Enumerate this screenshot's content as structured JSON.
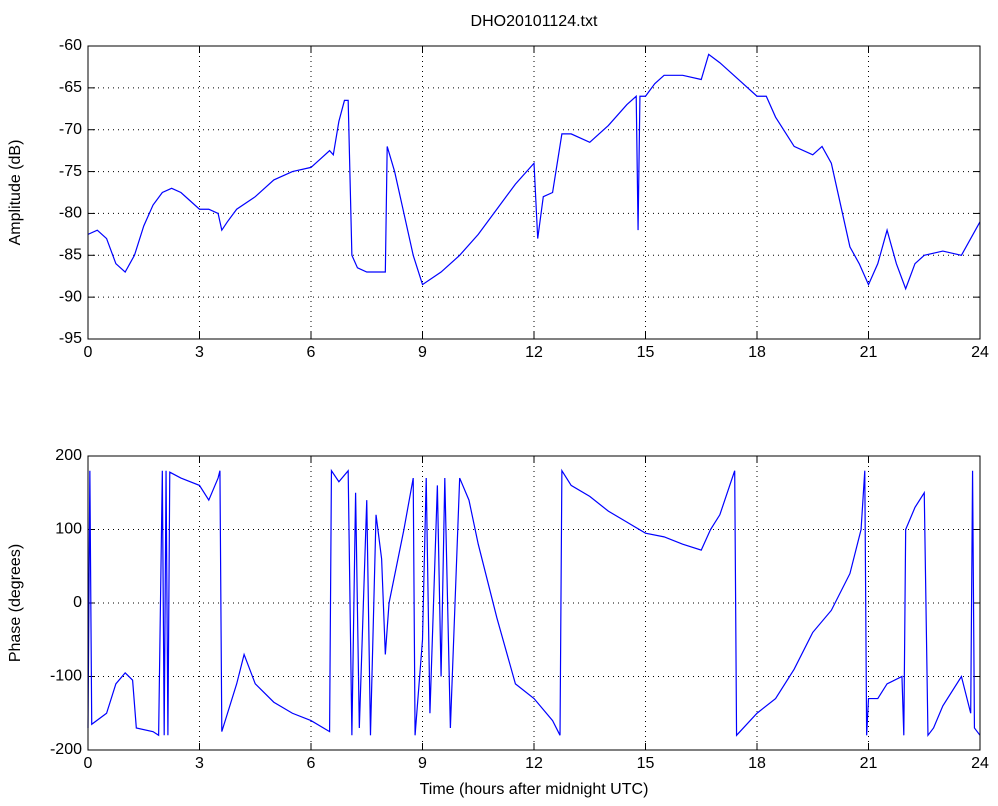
{
  "chart_data": [
    {
      "type": "line",
      "title": "DHO20101124.txt",
      "ylabel": "Amplitude (dB)",
      "x": [
        0,
        0.25,
        0.5,
        0.75,
        1.0,
        1.25,
        1.5,
        1.75,
        2.0,
        2.25,
        2.5,
        2.75,
        3.0,
        3.25,
        3.5,
        3.6,
        3.75,
        4.0,
        4.5,
        5.0,
        5.5,
        6.0,
        6.25,
        6.5,
        6.6,
        6.75,
        6.9,
        7.0,
        7.1,
        7.25,
        7.5,
        7.75,
        8.0,
        8.05,
        8.25,
        8.5,
        8.75,
        9.0,
        9.5,
        10.0,
        10.5,
        11.0,
        11.5,
        12.0,
        12.1,
        12.25,
        12.5,
        12.75,
        13.0,
        13.5,
        14.0,
        14.5,
        14.75,
        14.8,
        14.85,
        15.0,
        15.25,
        15.5,
        16.0,
        16.5,
        16.7,
        17.0,
        17.5,
        18.0,
        18.25,
        18.5,
        19.0,
        19.5,
        19.75,
        20.0,
        20.25,
        20.5,
        20.75,
        21.0,
        21.25,
        21.5,
        21.75,
        22.0,
        22.25,
        22.5,
        23.0,
        23.5,
        24.0
      ],
      "color": "#0000ff",
      "values": [
        -82.5,
        -82,
        -83,
        -86,
        -87,
        -85,
        -81.5,
        -79,
        -77.5,
        -77,
        -77.5,
        -78.5,
        -79.5,
        -79.5,
        -80,
        -82,
        -81,
        -79.5,
        -78,
        -76,
        -75,
        -74.5,
        -73.5,
        -72.5,
        -73,
        -69,
        -66.5,
        -66.5,
        -85,
        -86.5,
        -87,
        -87,
        -87,
        -72,
        -75,
        -80,
        -85,
        -88.5,
        -87,
        -85,
        -82.5,
        -79.5,
        -76.5,
        -74,
        -83,
        -78,
        -77.5,
        -70.5,
        -70.5,
        -71.5,
        -69.5,
        -67,
        -66,
        -82,
        -66,
        -66,
        -64.5,
        -63.5,
        -63.5,
        -64,
        -61,
        -62,
        -64,
        -66,
        -66,
        -68.5,
        -72,
        -73,
        -72,
        -74,
        -79,
        -84,
        -86,
        -88.5,
        -86,
        -82,
        -86,
        -89,
        -86,
        -85,
        -84.5,
        -85,
        -81
      ],
      "xlim": [
        0,
        24
      ],
      "xticks": [
        0,
        3,
        6,
        9,
        12,
        15,
        18,
        21,
        24
      ],
      "ylim": [
        -95,
        -60
      ],
      "yticks": [
        -95,
        -90,
        -85,
        -80,
        -75,
        -70,
        -65,
        -60
      ],
      "grid": true
    },
    {
      "type": "line",
      "xlabel": "Time (hours after midnight UTC)",
      "ylabel": "Phase (degrees)",
      "x": [
        0,
        0.05,
        0.1,
        0.5,
        0.75,
        1.0,
        1.2,
        1.3,
        1.75,
        1.9,
        2.0,
        2.05,
        2.1,
        2.15,
        2.2,
        2.5,
        3.0,
        3.25,
        3.5,
        3.55,
        3.6,
        4.0,
        4.2,
        4.5,
        5.0,
        5.5,
        6.0,
        6.5,
        6.55,
        6.75,
        7.0,
        7.1,
        7.2,
        7.3,
        7.5,
        7.6,
        7.75,
        7.9,
        8.0,
        8.1,
        8.5,
        8.75,
        8.8,
        9.0,
        9.1,
        9.2,
        9.4,
        9.5,
        9.6,
        9.75,
        10.0,
        10.25,
        10.5,
        11.0,
        11.5,
        12.0,
        12.5,
        12.7,
        12.75,
        13.0,
        13.5,
        14.0,
        14.5,
        15.0,
        15.5,
        16.0,
        16.5,
        16.75,
        17.0,
        17.4,
        17.45,
        18.0,
        18.5,
        19.0,
        19.5,
        20.0,
        20.5,
        20.8,
        20.9,
        20.95,
        21.0,
        21.25,
        21.5,
        21.9,
        21.95,
        22.0,
        22.25,
        22.5,
        22.6,
        22.75,
        23.0,
        23.5,
        23.75,
        23.8,
        23.85,
        24.0
      ],
      "color": "#0000ff",
      "values": [
        -170,
        180,
        -165,
        -150,
        -110,
        -95,
        -105,
        -170,
        -175,
        -180,
        180,
        -180,
        180,
        -180,
        178,
        170,
        160,
        140,
        170,
        180,
        -175,
        -110,
        -70,
        -110,
        -135,
        -150,
        -160,
        -175,
        180,
        165,
        180,
        -180,
        150,
        -170,
        140,
        -180,
        120,
        60,
        -70,
        0,
        100,
        170,
        -180,
        -50,
        170,
        -150,
        160,
        -100,
        170,
        -170,
        170,
        140,
        80,
        -20,
        -110,
        -130,
        -160,
        -180,
        180,
        160,
        145,
        125,
        110,
        95,
        90,
        80,
        72,
        100,
        120,
        180,
        -180,
        -150,
        -130,
        -90,
        -40,
        -10,
        40,
        100,
        180,
        -180,
        -130,
        -130,
        -110,
        -100,
        -180,
        100,
        130,
        150,
        -180,
        -170,
        -140,
        -100,
        -150,
        180,
        -170,
        -180
      ],
      "xlim": [
        0,
        24
      ],
      "xticks": [
        0,
        3,
        6,
        9,
        12,
        15,
        18,
        21,
        24
      ],
      "ylim": [
        -200,
        200
      ],
      "yticks": [
        -200,
        -100,
        0,
        100,
        200
      ],
      "grid": true
    }
  ]
}
